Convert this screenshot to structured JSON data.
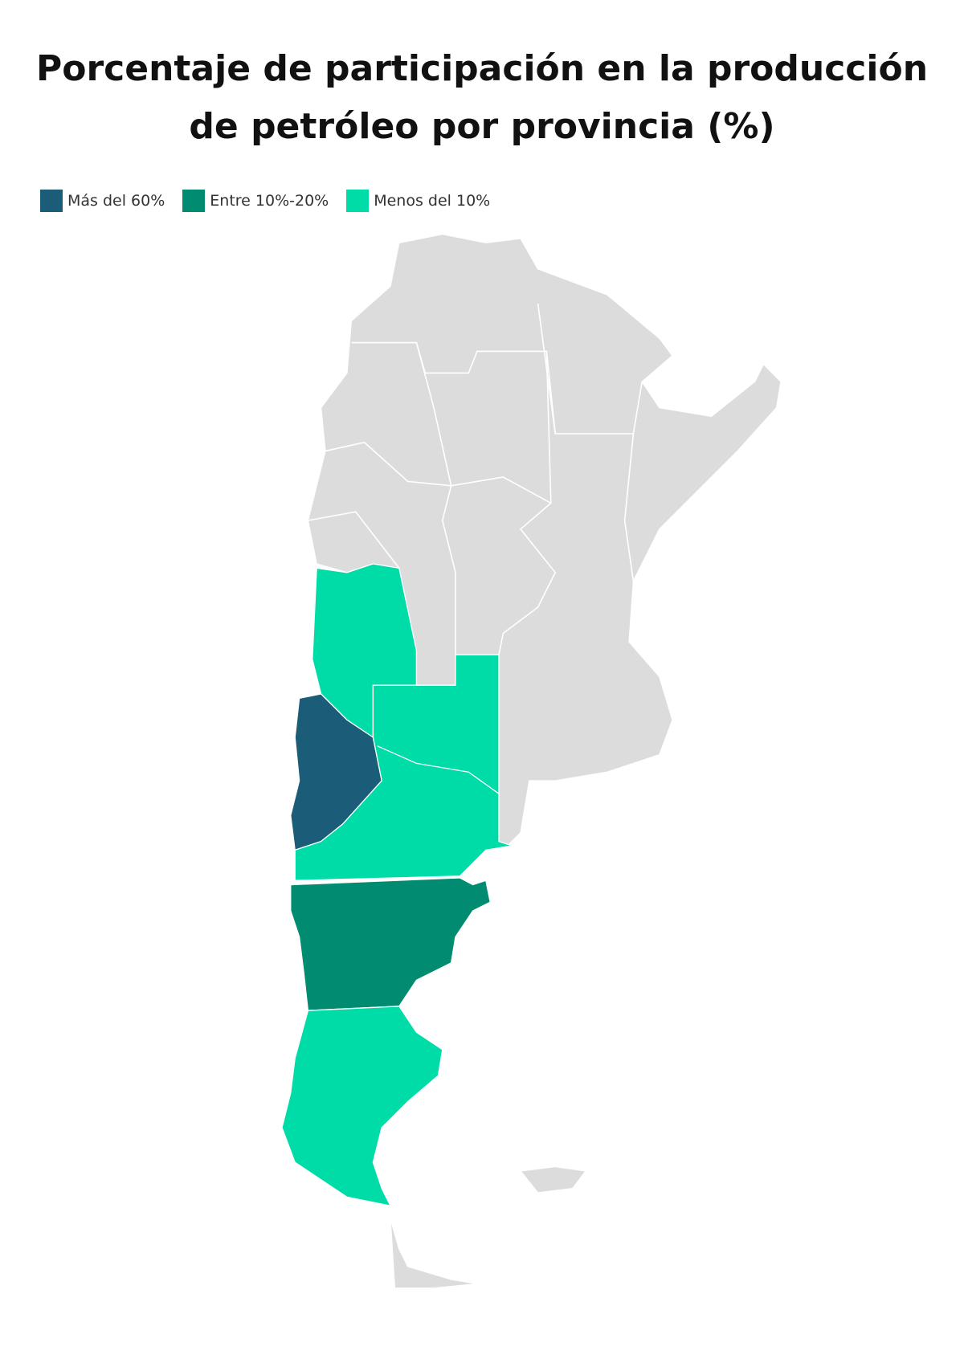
{
  "title": "Porcentaje de participación en la producción de petróleo por provincia (%)",
  "legend": [
    {
      "label": "Más del 60%",
      "color": "#1b5d78"
    },
    {
      "label": "Entre 10%-20%",
      "color": "#018b70"
    },
    {
      "label": "Menos del 10%",
      "color": "#00dca8"
    }
  ]
}
